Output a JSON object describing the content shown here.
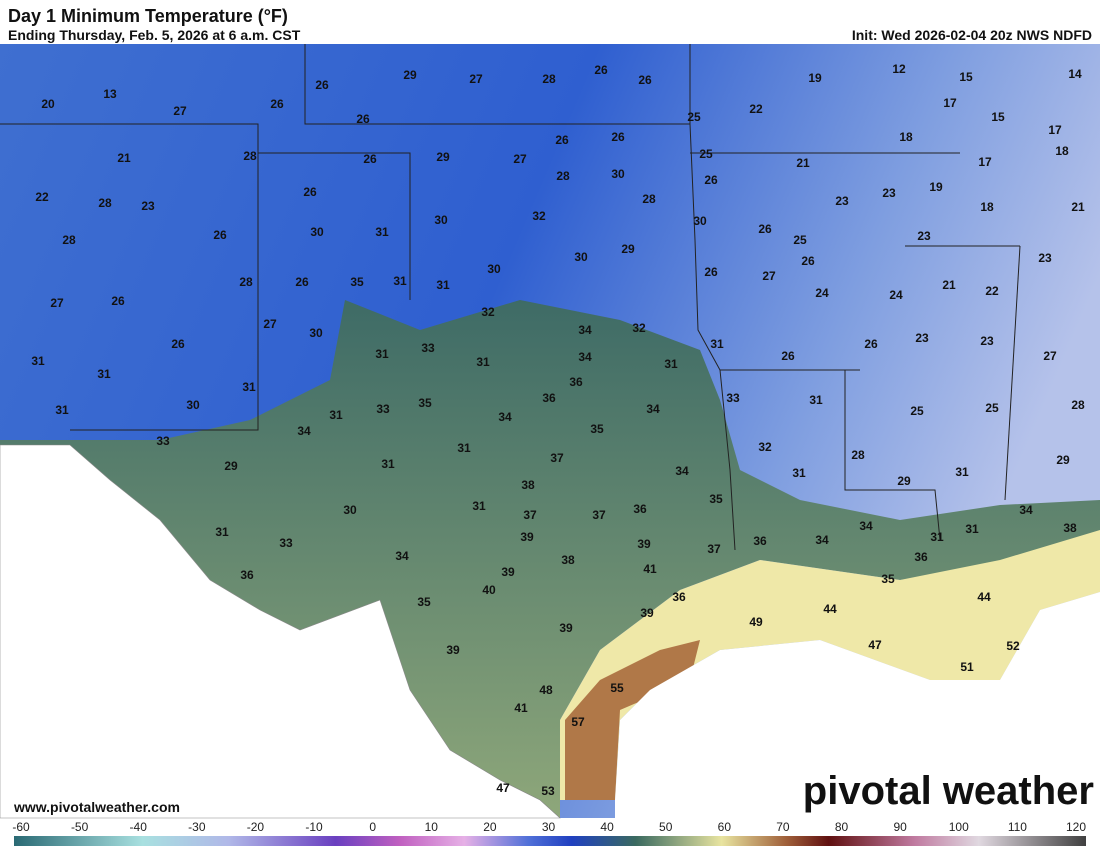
{
  "header": {
    "title": "Day 1 Minimum Temperature (°F)",
    "subtitle": "Ending Thursday, Feb. 5, 2026 at 6 a.m. CST",
    "init": "Init: Wed 2026-02-04 20z NWS NDFD"
  },
  "footer": {
    "site": "www.pivotalweather.com",
    "logo": "pivotal weather"
  },
  "temperatures": [
    13,
    20,
    27,
    26,
    26,
    29,
    27,
    28,
    26,
    26,
    19,
    12,
    15,
    14,
    22,
    17,
    15,
    17,
    18,
    18,
    17,
    25,
    26,
    26,
    26,
    25,
    21,
    28,
    26,
    29,
    27,
    28,
    30,
    26,
    21,
    23,
    19,
    18,
    21,
    22,
    28,
    23,
    26,
    28,
    23,
    30,
    31,
    30,
    32,
    30,
    26,
    25,
    23,
    28,
    26,
    29,
    30,
    26,
    23,
    30,
    26,
    27,
    24,
    24,
    21,
    22,
    28,
    26,
    35,
    31,
    31,
    27,
    26,
    32,
    34,
    32,
    27,
    30,
    33,
    31,
    26,
    23,
    23,
    27,
    31,
    31,
    26,
    31,
    31,
    34,
    31,
    26,
    36,
    36,
    31,
    30,
    35,
    33,
    34,
    33,
    31,
    25,
    25,
    28,
    31,
    31,
    34,
    35,
    33,
    34,
    31,
    32,
    28,
    37,
    29,
    31,
    34,
    31,
    29,
    31,
    29,
    38,
    35,
    31,
    30,
    37,
    37,
    36,
    34,
    34,
    31,
    38,
    31,
    33,
    39,
    36,
    34,
    31,
    36,
    39,
    37,
    34,
    38,
    36,
    39,
    41,
    35,
    40,
    36,
    44,
    44,
    35,
    39,
    49,
    39,
    47,
    52,
    39,
    51,
    55,
    48,
    41,
    57,
    47,
    53
  ],
  "colorbar": {
    "ticks": [
      -60,
      -50,
      -40,
      -30,
      -20,
      -10,
      0,
      10,
      20,
      30,
      40,
      50,
      60,
      70,
      80,
      90,
      100,
      110,
      120
    ]
  }
}
